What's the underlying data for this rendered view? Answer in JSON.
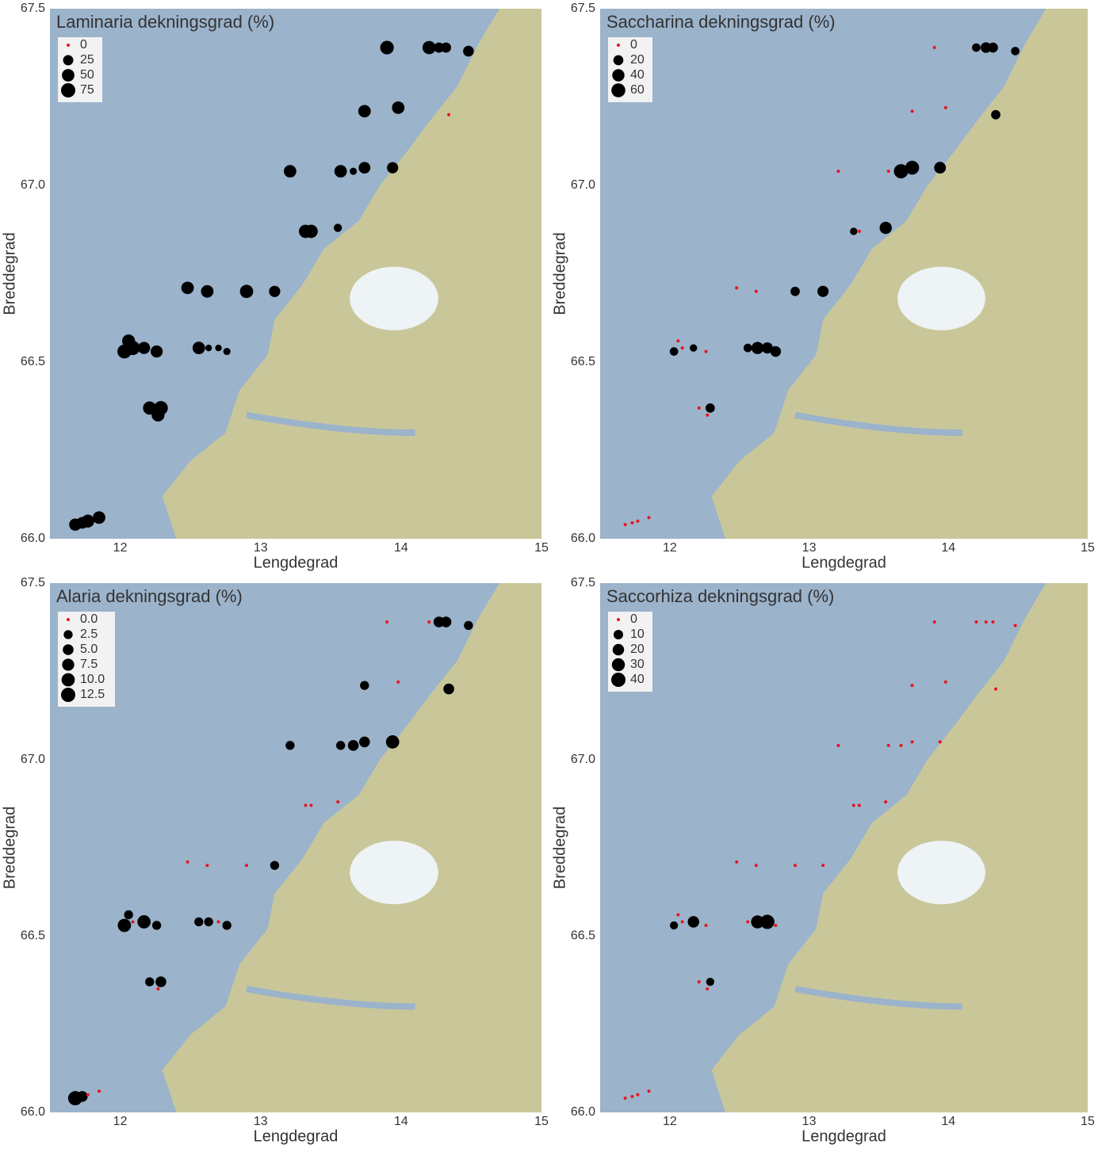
{
  "chart_data": [
    {
      "type": "scatter",
      "title": "Laminaria dekningsgrad (%)",
      "xlabel": "Lengdegrad",
      "ylabel": "Breddegrad",
      "xlim": [
        11.5,
        15
      ],
      "ylim": [
        66.0,
        67.5
      ],
      "xticks": [
        12,
        13,
        14,
        15
      ],
      "yticks": [
        {
          "value": 66.0,
          "label": "66.0"
        },
        {
          "value": 66.5,
          "label": "66.5"
        },
        {
          "value": 67.0,
          "label": "67.0"
        },
        {
          "value": 67.5,
          "label": "67.5"
        }
      ],
      "size_legend": [
        0,
        25,
        50,
        75
      ],
      "color": "#000000",
      "zero_color": "#e8141b",
      "x": [
        11.68,
        11.73,
        11.77,
        11.85,
        12.03,
        12.06,
        12.09,
        12.17,
        12.26,
        12.21,
        12.27,
        12.29,
        12.56,
        12.63,
        12.7,
        12.76,
        12.48,
        12.62,
        12.9,
        13.1,
        13.32,
        13.36,
        13.55,
        13.21,
        13.57,
        13.66,
        13.74,
        13.94,
        13.74,
        13.98,
        13.9,
        14.2,
        14.27,
        14.32,
        14.48,
        14.34
      ],
      "y": [
        66.04,
        66.045,
        66.05,
        66.06,
        66.53,
        66.56,
        66.54,
        66.54,
        66.53,
        66.37,
        66.35,
        66.37,
        66.54,
        66.54,
        66.54,
        66.53,
        66.71,
        66.7,
        66.7,
        66.7,
        66.87,
        66.87,
        66.88,
        67.04,
        67.04,
        67.04,
        67.05,
        67.05,
        67.21,
        67.22,
        67.39,
        67.39,
        67.39,
        67.39,
        67.38,
        67.2
      ],
      "sizes": [
        45,
        40,
        55,
        50,
        70,
        55,
        75,
        45,
        45,
        60,
        55,
        70,
        50,
        3,
        3,
        5,
        50,
        50,
        60,
        35,
        60,
        60,
        10,
        50,
        50,
        5,
        40,
        35,
        50,
        50,
        65,
        60,
        25,
        25,
        30,
        0
      ]
    },
    {
      "type": "scatter",
      "title": "Saccharina dekningsgrad (%)",
      "xlabel": "Lengdegrad",
      "ylabel": "Breddegrad",
      "xlim": [
        11.5,
        15
      ],
      "ylim": [
        66.0,
        67.5
      ],
      "xticks": [
        12,
        13,
        14,
        15
      ],
      "yticks": [
        {
          "value": 66.0,
          "label": "66.0"
        },
        {
          "value": 66.5,
          "label": "66.5"
        },
        {
          "value": 67.0,
          "label": "67.0"
        },
        {
          "value": 67.5,
          "label": "67.5"
        }
      ],
      "size_legend": [
        0,
        20,
        40,
        60
      ],
      "color": "#000000",
      "zero_color": "#e8141b",
      "x": [
        11.68,
        11.73,
        11.77,
        11.85,
        12.03,
        12.06,
        12.09,
        12.17,
        12.26,
        12.21,
        12.27,
        12.29,
        12.56,
        12.63,
        12.7,
        12.76,
        12.48,
        12.62,
        12.9,
        13.1,
        13.32,
        13.36,
        13.55,
        13.21,
        13.57,
        13.66,
        13.74,
        13.94,
        13.74,
        13.98,
        13.9,
        14.2,
        14.27,
        14.32,
        14.48,
        14.34
      ],
      "y": [
        66.04,
        66.045,
        66.05,
        66.06,
        66.53,
        66.56,
        66.54,
        66.54,
        66.53,
        66.37,
        66.35,
        66.37,
        66.54,
        66.54,
        66.54,
        66.53,
        66.71,
        66.7,
        66.7,
        66.7,
        66.87,
        66.87,
        66.88,
        67.04,
        67.04,
        67.04,
        67.05,
        67.05,
        67.21,
        67.22,
        67.39,
        67.39,
        67.39,
        67.39,
        67.38,
        67.2
      ],
      "sizes": [
        0,
        0,
        0,
        0,
        10,
        0,
        0,
        5,
        0,
        0,
        0,
        15,
        10,
        40,
        30,
        25,
        0,
        0,
        15,
        30,
        5,
        0,
        40,
        0,
        0,
        65,
        60,
        35,
        0,
        0,
        0,
        10,
        25,
        20,
        10,
        15
      ]
    },
    {
      "type": "scatter",
      "title": "Alaria dekningsgrad (%)",
      "xlabel": "Lengdegrad",
      "ylabel": "Breddegrad",
      "xlim": [
        11.5,
        15
      ],
      "ylim": [
        66.0,
        67.5
      ],
      "xticks": [
        12,
        13,
        14,
        15
      ],
      "yticks": [
        {
          "value": 66.0,
          "label": "66.0"
        },
        {
          "value": 66.5,
          "label": "66.5"
        },
        {
          "value": 67.0,
          "label": "67.0"
        },
        {
          "value": 67.5,
          "label": "67.5"
        }
      ],
      "size_legend": [
        {
          "value": 0,
          "label": "0.0"
        },
        {
          "value": 2.5,
          "label": "2.5"
        },
        {
          "value": 5,
          "label": "5.0"
        },
        {
          "value": 7.5,
          "label": "7.5"
        },
        {
          "value": 10,
          "label": "10.0"
        },
        {
          "value": 12.5,
          "label": "12.5"
        }
      ],
      "color": "#000000",
      "zero_color": "#e8141b",
      "x": [
        11.68,
        11.73,
        11.77,
        11.85,
        12.03,
        12.06,
        12.09,
        12.17,
        12.26,
        12.21,
        12.27,
        12.29,
        12.56,
        12.63,
        12.7,
        12.76,
        12.48,
        12.62,
        12.9,
        13.1,
        13.32,
        13.36,
        13.55,
        13.21,
        13.57,
        13.66,
        13.74,
        13.94,
        13.74,
        13.98,
        13.9,
        14.2,
        14.27,
        14.32,
        14.48,
        14.34
      ],
      "y": [
        66.04,
        66.045,
        66.05,
        66.06,
        66.53,
        66.56,
        66.54,
        66.54,
        66.53,
        66.37,
        66.35,
        66.37,
        66.54,
        66.54,
        66.54,
        66.53,
        66.71,
        66.7,
        66.7,
        66.7,
        66.87,
        66.87,
        66.88,
        67.04,
        67.04,
        67.04,
        67.05,
        67.05,
        67.21,
        67.22,
        67.39,
        67.39,
        67.39,
        67.39,
        67.38,
        67.2
      ],
      "sizes": [
        12.5,
        5,
        0,
        0,
        10,
        2.5,
        0,
        10,
        2.5,
        2.5,
        0,
        5,
        2.5,
        2.5,
        0,
        2.5,
        0,
        0,
        0,
        2.5,
        0,
        0,
        0,
        2.5,
        2.5,
        5,
        5,
        10,
        2.5,
        0,
        0,
        0,
        5,
        5,
        2.5,
        5
      ]
    },
    {
      "type": "scatter",
      "title": "Saccorhiza dekningsgrad (%)",
      "xlabel": "Lengdegrad",
      "ylabel": "Breddegrad",
      "xlim": [
        11.5,
        15
      ],
      "ylim": [
        66.0,
        67.5
      ],
      "xticks": [
        12,
        13,
        14,
        15
      ],
      "yticks": [
        {
          "value": 66.0,
          "label": "66.0"
        },
        {
          "value": 66.5,
          "label": "66.5"
        },
        {
          "value": 67.0,
          "label": "67.0"
        },
        {
          "value": 67.5,
          "label": "67.5"
        }
      ],
      "size_legend": [
        0,
        10,
        20,
        30,
        40
      ],
      "color": "#000000",
      "zero_color": "#e8141b",
      "x": [
        11.68,
        11.73,
        11.77,
        11.85,
        12.03,
        12.06,
        12.09,
        12.17,
        12.26,
        12.21,
        12.27,
        12.29,
        12.56,
        12.63,
        12.7,
        12.76,
        12.48,
        12.62,
        12.9,
        13.1,
        13.32,
        13.36,
        13.55,
        13.21,
        13.57,
        13.66,
        13.74,
        13.94,
        13.74,
        13.98,
        13.9,
        14.2,
        14.27,
        14.32,
        14.48,
        14.34
      ],
      "y": [
        66.04,
        66.045,
        66.05,
        66.06,
        66.53,
        66.56,
        66.54,
        66.54,
        66.53,
        66.37,
        66.35,
        66.37,
        66.54,
        66.54,
        66.54,
        66.53,
        66.71,
        66.7,
        66.7,
        66.7,
        66.87,
        66.87,
        66.88,
        67.04,
        67.04,
        67.04,
        67.05,
        67.05,
        67.21,
        67.22,
        67.39,
        67.39,
        67.39,
        67.39,
        67.38,
        67.2
      ],
      "sizes": [
        0,
        0,
        0,
        0,
        5,
        0,
        0,
        20,
        0,
        0,
        0,
        5,
        0,
        30,
        40,
        0,
        0,
        0,
        0,
        0,
        0,
        0,
        0,
        0,
        0,
        0,
        0,
        0,
        0,
        0,
        0,
        0,
        0,
        0,
        0,
        0
      ]
    }
  ]
}
